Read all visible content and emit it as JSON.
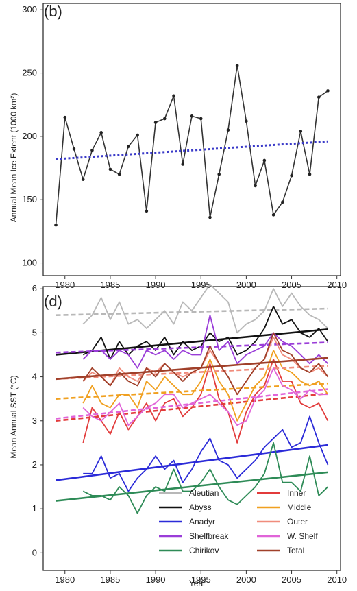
{
  "chart_data": [
    {
      "type": "line",
      "panel_label": "(b)",
      "ylabel": "Annual Mean Ice Extent (1000 km²)",
      "xlabel": "",
      "xlim": [
        1977.6,
        2010.4
      ],
      "ylim": [
        90,
        305
      ],
      "xticks": [
        1980,
        1985,
        1990,
        1995,
        2000,
        2005,
        2010
      ],
      "yticks": [
        100,
        150,
        200,
        250,
        300
      ],
      "grid": false,
      "series": [
        {
          "color": "#333333",
          "style": "solid",
          "markers": true,
          "x": [
            1979,
            1980,
            1981,
            1982,
            1983,
            1984,
            1985,
            1986,
            1987,
            1988,
            1989,
            1990,
            1991,
            1992,
            1993,
            1994,
            1995,
            1996,
            1997,
            1998,
            1999,
            2000,
            2001,
            2002,
            2003,
            2004,
            2005,
            2006,
            2007,
            2008,
            2009
          ],
          "y": [
            130,
            215,
            190,
            166,
            189,
            203,
            174,
            170,
            192,
            201,
            141,
            211,
            214,
            232,
            178,
            216,
            214,
            136,
            170,
            205,
            256,
            212,
            161,
            181,
            138,
            148,
            169,
            204,
            170,
            231,
            236
          ]
        },
        {
          "color": "#3a3ac8",
          "style": "dotted",
          "markers": false,
          "x": [
            1979,
            2009
          ],
          "y": [
            182,
            196
          ]
        }
      ]
    },
    {
      "type": "line",
      "panel_label": "(d)",
      "ylabel": "Mean Annual SST (°C)",
      "xlabel": "Year",
      "xlim": [
        1977.6,
        2010.4
      ],
      "ylim": [
        -0.4,
        6.05
      ],
      "xticks": [
        1980,
        1985,
        1990,
        1995,
        2000,
        2005,
        2010
      ],
      "yticks": [
        0,
        1,
        2,
        3,
        4,
        5,
        6
      ],
      "grid": false,
      "legend_position": "bottom-right",
      "series": [
        {
          "name": "Aleutian",
          "color": "#b8b8b8",
          "x": [
            1982,
            1983,
            1984,
            1985,
            1986,
            1987,
            1988,
            1989,
            1990,
            1991,
            1992,
            1993,
            1994,
            1995,
            1996,
            1997,
            1998,
            1999,
            2000,
            2001,
            2002,
            2003,
            2004,
            2005,
            2006,
            2007,
            2008,
            2009
          ],
          "y": [
            5.2,
            5.4,
            5.8,
            5.3,
            5.7,
            5.2,
            5.3,
            5.1,
            5.3,
            5.5,
            5.2,
            5.7,
            5.5,
            5.8,
            6.1,
            5.9,
            5.7,
            5.0,
            5.2,
            5.3,
            5.5,
            6.0,
            5.6,
            5.9,
            5.6,
            5.4,
            5.3,
            5.1
          ],
          "trend": {
            "x": [
              1979,
              2009
            ],
            "y": [
              5.4,
              5.55
            ],
            "style": "dashed"
          }
        },
        {
          "name": "Abyss",
          "color": "#111111",
          "x": [
            1982,
            1983,
            1984,
            1985,
            1986,
            1987,
            1988,
            1989,
            1990,
            1991,
            1992,
            1993,
            1994,
            1995,
            1996,
            1997,
            1998,
            1999,
            2000,
            2001,
            2002,
            2003,
            2004,
            2005,
            2006,
            2007,
            2008,
            2009
          ],
          "y": [
            4.5,
            4.6,
            4.9,
            4.4,
            4.8,
            4.5,
            4.7,
            4.8,
            4.6,
            4.9,
            4.5,
            4.8,
            4.6,
            4.7,
            5.0,
            4.8,
            4.9,
            4.5,
            4.6,
            4.8,
            5.1,
            5.6,
            5.2,
            5.3,
            5.0,
            4.9,
            5.1,
            4.8
          ],
          "trend": {
            "x": [
              1979,
              2009
            ],
            "y": [
              4.5,
              5.08
            ],
            "style": "solid"
          }
        },
        {
          "name": "Anadyr",
          "color": "#2b2bd8",
          "x": [
            1982,
            1983,
            1984,
            1985,
            1986,
            1987,
            1988,
            1989,
            1990,
            1991,
            1992,
            1993,
            1994,
            1995,
            1996,
            1997,
            1998,
            1999,
            2000,
            2001,
            2002,
            2003,
            2004,
            2005,
            2006,
            2007,
            2008,
            2009
          ],
          "y": [
            1.8,
            1.8,
            2.2,
            1.7,
            1.8,
            1.4,
            1.7,
            1.9,
            2.2,
            1.9,
            2.1,
            1.6,
            1.9,
            2.3,
            2.6,
            2.1,
            2.0,
            1.7,
            1.9,
            2.1,
            2.4,
            2.6,
            2.8,
            2.4,
            2.5,
            3.1,
            2.5,
            2.0
          ],
          "trend": {
            "x": [
              1979,
              2009
            ],
            "y": [
              1.65,
              2.45
            ],
            "style": "solid"
          }
        },
        {
          "name": "Shelfbreak",
          "color": "#9a3dd8",
          "x": [
            1982,
            1983,
            1984,
            1985,
            1986,
            1987,
            1988,
            1989,
            1990,
            1991,
            1992,
            1993,
            1994,
            1995,
            1996,
            1997,
            1998,
            1999,
            2000,
            2001,
            2002,
            2003,
            2004,
            2005,
            2006,
            2007,
            2008,
            2009
          ],
          "y": [
            4.4,
            4.6,
            4.6,
            4.4,
            4.6,
            4.5,
            4.2,
            4.6,
            4.5,
            4.6,
            4.4,
            4.6,
            4.5,
            4.5,
            5.4,
            4.6,
            4.8,
            4.3,
            4.5,
            4.6,
            4.7,
            5.0,
            4.8,
            4.7,
            4.5,
            4.3,
            4.5,
            4.3
          ],
          "trend": {
            "x": [
              1979,
              2009
            ],
            "y": [
              4.55,
              4.78
            ],
            "style": "dashed"
          }
        },
        {
          "name": "Chirikov",
          "color": "#2e8b57",
          "x": [
            1982,
            1983,
            1984,
            1985,
            1986,
            1987,
            1988,
            1989,
            1990,
            1991,
            1992,
            1993,
            1994,
            1995,
            1996,
            1997,
            1998,
            1999,
            2000,
            2001,
            2002,
            2003,
            2004,
            2005,
            2006,
            2007,
            2008,
            2009
          ],
          "y": [
            1.4,
            1.3,
            1.3,
            1.2,
            1.5,
            1.3,
            0.9,
            1.3,
            1.5,
            1.4,
            1.9,
            1.4,
            1.4,
            1.6,
            1.9,
            1.5,
            1.2,
            1.1,
            1.3,
            1.5,
            1.8,
            2.5,
            1.6,
            1.6,
            1.4,
            2.2,
            1.3,
            1.5
          ],
          "trend": {
            "x": [
              1979,
              2009
            ],
            "y": [
              1.18,
              1.83
            ],
            "style": "solid"
          }
        },
        {
          "name": "Inner",
          "color": "#e23b3b",
          "x": [
            1982,
            1983,
            1984,
            1985,
            1986,
            1987,
            1988,
            1989,
            1990,
            1991,
            1992,
            1993,
            1994,
            1995,
            1996,
            1997,
            1998,
            1999,
            2000,
            2001,
            2002,
            2003,
            2004,
            2005,
            2006,
            2007,
            2008,
            2009
          ],
          "y": [
            2.5,
            3.3,
            3.0,
            2.7,
            3.2,
            2.8,
            3.1,
            3.4,
            3.0,
            3.4,
            3.5,
            3.1,
            3.3,
            3.6,
            4.3,
            3.5,
            3.2,
            2.5,
            3.2,
            3.6,
            3.8,
            4.4,
            3.9,
            3.9,
            3.4,
            3.3,
            3.4,
            3.0
          ],
          "trend": {
            "x": [
              1979,
              2009
            ],
            "y": [
              3.0,
              3.62
            ],
            "style": "dashed"
          }
        },
        {
          "name": "Middle",
          "color": "#f0a020",
          "x": [
            1982,
            1983,
            1984,
            1985,
            1986,
            1987,
            1988,
            1989,
            1990,
            1991,
            1992,
            1993,
            1994,
            1995,
            1996,
            1997,
            1998,
            1999,
            2000,
            2001,
            2002,
            2003,
            2004,
            2005,
            2006,
            2007,
            2008,
            2009
          ],
          "y": [
            3.4,
            3.8,
            3.4,
            3.3,
            3.6,
            3.6,
            3.3,
            3.9,
            3.7,
            4.0,
            3.8,
            3.6,
            3.6,
            3.9,
            4.4,
            3.9,
            3.6,
            3.0,
            3.4,
            3.8,
            4.0,
            4.6,
            4.2,
            4.1,
            3.9,
            3.8,
            3.9,
            3.6
          ],
          "trend": {
            "x": [
              1979,
              2009
            ],
            "y": [
              3.5,
              3.85
            ],
            "style": "dashed"
          }
        },
        {
          "name": "Outer",
          "color": "#f08c7c",
          "x": [
            1982,
            1983,
            1984,
            1985,
            1986,
            1987,
            1988,
            1989,
            1990,
            1991,
            1992,
            1993,
            1994,
            1995,
            1996,
            1997,
            1998,
            1999,
            2000,
            2001,
            2002,
            2003,
            2004,
            2005,
            2006,
            2007,
            2008,
            2009
          ],
          "y": [
            3.9,
            4.1,
            4.0,
            3.8,
            4.2,
            4.0,
            3.9,
            4.2,
            4.1,
            4.3,
            4.1,
            4.0,
            4.1,
            4.2,
            4.6,
            4.3,
            4.0,
            3.6,
            3.9,
            4.2,
            4.4,
            4.9,
            4.5,
            4.4,
            4.2,
            4.1,
            4.2,
            4.0
          ],
          "trend": {
            "x": [
              1979,
              2009
            ],
            "y": [
              3.95,
              4.25
            ],
            "style": "dashed"
          }
        },
        {
          "name": "W. Shelf",
          "color": "#e064d8",
          "x": [
            1982,
            1983,
            1984,
            1985,
            1986,
            1987,
            1988,
            1989,
            1990,
            1991,
            1992,
            1993,
            1994,
            1995,
            1996,
            1997,
            1998,
            1999,
            2000,
            2001,
            2002,
            2003,
            2004,
            2005,
            2006,
            2007,
            2008,
            2009
          ],
          "y": [
            3.3,
            3.1,
            3.0,
            3.2,
            3.4,
            2.9,
            3.1,
            3.3,
            3.4,
            3.6,
            3.6,
            3.3,
            3.4,
            3.5,
            3.6,
            3.4,
            3.2,
            2.9,
            3.0,
            3.5,
            3.7,
            4.2,
            3.8,
            3.7,
            3.5,
            3.7,
            3.6,
            3.6
          ],
          "trend": {
            "x": [
              1979,
              2009
            ],
            "y": [
              3.05,
              3.72
            ],
            "style": "dashed"
          }
        },
        {
          "name": "Total",
          "color": "#a0402a",
          "x": [
            1982,
            1983,
            1984,
            1985,
            1986,
            1987,
            1988,
            1989,
            1990,
            1991,
            1992,
            1993,
            1994,
            1995,
            1996,
            1997,
            1998,
            1999,
            2000,
            2001,
            2002,
            2003,
            2004,
            2005,
            2006,
            2007,
            2008,
            2009
          ],
          "y": [
            3.9,
            4.2,
            4.0,
            3.8,
            4.1,
            3.9,
            3.8,
            4.2,
            4.0,
            4.3,
            4.1,
            3.9,
            4.1,
            4.2,
            4.7,
            4.3,
            4.0,
            3.6,
            3.9,
            4.2,
            4.4,
            5.0,
            4.6,
            4.5,
            4.2,
            4.1,
            4.3,
            4.0
          ],
          "trend": {
            "x": [
              1979,
              2009
            ],
            "y": [
              3.95,
              4.43
            ],
            "style": "solid"
          }
        }
      ]
    }
  ]
}
